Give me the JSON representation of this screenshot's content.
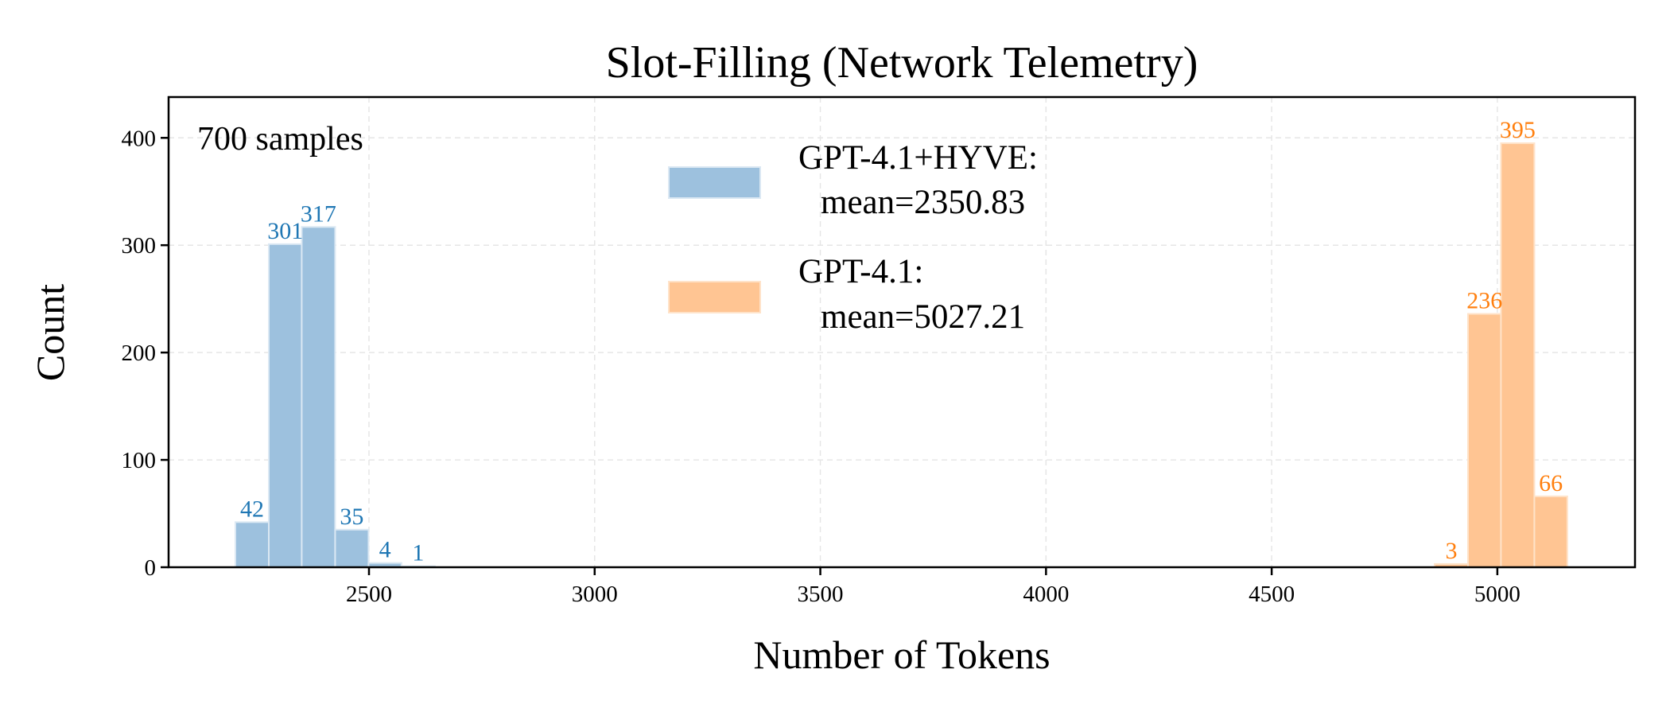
{
  "chart_data": {
    "type": "histogram",
    "title": "Slot-Filling (Network Telemetry)",
    "xlabel": "Number of Tokens",
    "ylabel": "Count",
    "xlim": [
      2056,
      5305
    ],
    "ylim": [
      0,
      438
    ],
    "xticks": [
      2500,
      3000,
      3500,
      4000,
      4500,
      5000
    ],
    "yticks": [
      0,
      100,
      200,
      300,
      400
    ],
    "grid": true,
    "annotation": "700 samples",
    "legend_position": "top-center",
    "series": [
      {
        "name": "GPT-4.1+HYVE:\n  mean=2350.83",
        "legend_line1": "GPT-4.1+HYVE:",
        "legend_line2": "mean=2350.83",
        "color": "#9dc1de",
        "label_color": "#1f77b4",
        "bin_edges": [
          2204,
          2278,
          2351,
          2425,
          2499,
          2572,
          2646
        ],
        "counts": [
          42,
          301,
          317,
          35,
          4,
          1
        ]
      },
      {
        "name": "GPT-4.1:\n  mean=5027.21",
        "legend_line1": "GPT-4.1:",
        "legend_line2": "mean=5027.21",
        "color": "#ffc593",
        "label_color": "#ff7f0e",
        "bin_edges": [
          4861,
          4935,
          5008,
          5082,
          5155
        ],
        "counts": [
          3,
          236,
          395,
          66
        ]
      }
    ]
  }
}
